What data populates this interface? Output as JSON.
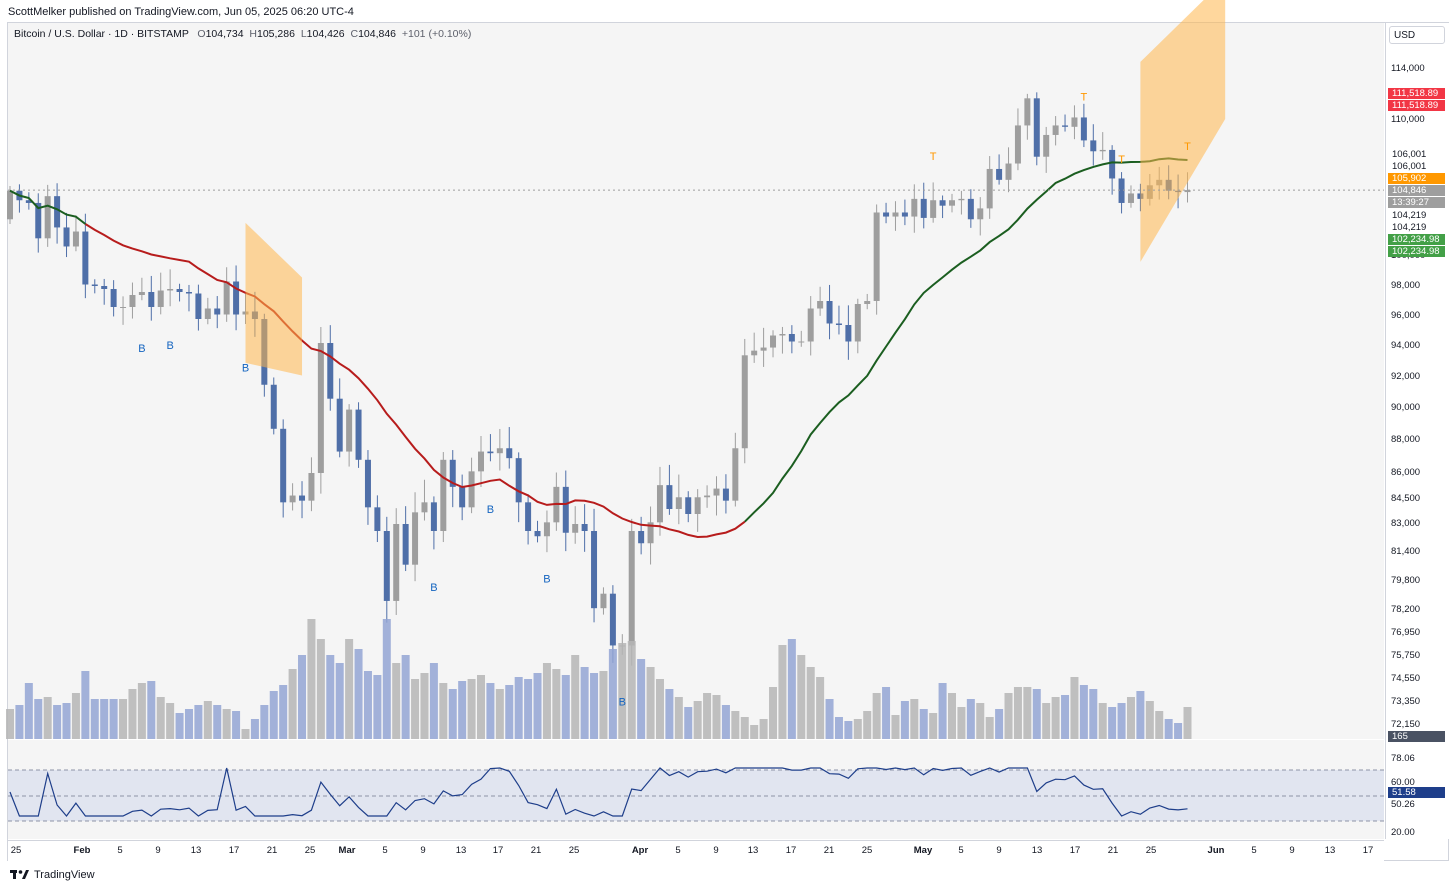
{
  "publisher_line": "ScottMelker published on TradingView.com, Jun 05, 2025 06:20 UTC-4",
  "symbol": {
    "name": "Bitcoin / U.S. Dollar · 1D · BITSTAMP",
    "open_label": "O",
    "open": "104,734",
    "high_label": "H",
    "high": "105,286",
    "low_label": "L",
    "low": "104,426",
    "close_label": "C",
    "close": "104,846",
    "change": "+101 (+0.10%)"
  },
  "currency_button": "USD",
  "price_axis": {
    "ticks": [
      "114,000",
      "110,000",
      "100,000",
      "98,000",
      "96,000",
      "94,000",
      "92,000",
      "90,000",
      "88,000",
      "86,000",
      "84,500",
      "83,000",
      "81,400",
      "79,800",
      "78,200",
      "76,950",
      "75,750",
      "74,550",
      "73,350",
      "72,150"
    ],
    "tags": [
      {
        "text": "111,518.89",
        "color": "#f23645"
      },
      {
        "text": "111,518.89",
        "color": "#f23645"
      },
      {
        "text": "106,001",
        "color": "#ffffff",
        "fg": "#131722"
      },
      {
        "text": "106,001",
        "color": "#ffffff",
        "fg": "#131722"
      },
      {
        "text": "105,902",
        "color": "#ff9800"
      },
      {
        "text": "104,846",
        "color": "#9e9e9e"
      },
      {
        "text": "13:39:27",
        "color": "#9e9e9e"
      },
      {
        "text": "104,219",
        "color": "#ffffff",
        "fg": "#131722"
      },
      {
        "text": "104,219",
        "color": "#ffffff",
        "fg": "#131722"
      },
      {
        "text": "102,234.98",
        "color": "#43a047"
      },
      {
        "text": "102,234.98",
        "color": "#43a047"
      },
      {
        "text": "165",
        "color": "#4a5263"
      }
    ]
  },
  "osc_axis": {
    "ticks": [
      "78.06",
      "60.00",
      "50.26",
      "20.00"
    ],
    "tag": {
      "text": "51.58",
      "color": "#1e3e8a"
    }
  },
  "time_axis": {
    "labels": [
      {
        "t": "25",
        "major": false
      },
      {
        "t": "Feb",
        "major": true
      },
      {
        "t": "5",
        "major": false
      },
      {
        "t": "9",
        "major": false
      },
      {
        "t": "13",
        "major": false
      },
      {
        "t": "17",
        "major": false
      },
      {
        "t": "21",
        "major": false
      },
      {
        "t": "25",
        "major": false
      },
      {
        "t": "Mar",
        "major": true
      },
      {
        "t": "5",
        "major": false
      },
      {
        "t": "9",
        "major": false
      },
      {
        "t": "13",
        "major": false
      },
      {
        "t": "17",
        "major": false
      },
      {
        "t": "21",
        "major": false
      },
      {
        "t": "25",
        "major": false
      },
      {
        "t": "Apr",
        "major": true
      },
      {
        "t": "5",
        "major": false
      },
      {
        "t": "9",
        "major": false
      },
      {
        "t": "13",
        "major": false
      },
      {
        "t": "17",
        "major": false
      },
      {
        "t": "21",
        "major": false
      },
      {
        "t": "25",
        "major": false
      },
      {
        "t": "May",
        "major": true
      },
      {
        "t": "5",
        "major": false
      },
      {
        "t": "9",
        "major": false
      },
      {
        "t": "13",
        "major": false
      },
      {
        "t": "17",
        "major": false
      },
      {
        "t": "21",
        "major": false
      },
      {
        "t": "25",
        "major": false
      },
      {
        "t": "Jun",
        "major": true
      },
      {
        "t": "5",
        "major": false
      },
      {
        "t": "9",
        "major": false
      },
      {
        "t": "13",
        "major": false
      },
      {
        "t": "17",
        "major": false
      }
    ]
  },
  "signals": {
    "buy_label": "B",
    "top_label": "T"
  },
  "footer": {
    "brand": "TradingView"
  },
  "colors": {
    "up_candle": "#9e9e9e",
    "down_candle": "#4f6fa8",
    "ma_bear": "#b71c1c",
    "ma_bull": "#1b5e20",
    "flat_band": "#ff9800",
    "projection": "#ffb74d",
    "oscillator": "#1e3e8a",
    "signal_blue": "#1565c0",
    "top_orange": "#ff9800"
  },
  "chart_data": {
    "type": "candlestick",
    "title": "",
    "x": [
      "2025-01-25",
      "2025-06-05"
    ],
    "price_ylim": [
      72150,
      114000
    ],
    "closes": [
      104800,
      104100,
      103900,
      101300,
      104400,
      102100,
      100700,
      101800,
      98100,
      98000,
      97800,
      96600,
      96600,
      97400,
      97600,
      96600,
      97700,
      97800,
      97600,
      97500,
      95800,
      96500,
      96100,
      98300,
      96100,
      96300,
      95800,
      91500,
      88700,
      84300,
      84700,
      84400,
      86000,
      94200,
      90600,
      87300,
      89900,
      86800,
      84000,
      82600,
      78700,
      83000,
      80700,
      83700,
      84300,
      82600,
      86800,
      85200,
      84000,
      86100,
      87300,
      87200,
      87500,
      86900,
      84300,
      82600,
      82300,
      83100,
      85200,
      82500,
      83000,
      82600,
      78300,
      79100,
      76300,
      76300,
      82600,
      81900,
      83100,
      85300,
      83900,
      84600,
      83600,
      84600,
      84700,
      85100,
      84400,
      87500,
      93400,
      93700,
      93900,
      94700,
      94800,
      94300,
      94300,
      96500,
      97000,
      95500,
      95400,
      94300,
      96800,
      97000,
      103200,
      102900,
      103200,
      102900,
      104200,
      102800,
      104100,
      103700,
      104100,
      104200,
      102700,
      103500,
      106400,
      105600,
      106800,
      109600,
      111700,
      107300,
      108900,
      109600,
      109500,
      110200,
      108500,
      107700,
      107800,
      105700,
      103900,
      104600,
      104200,
      105200,
      105600,
      104800,
      104700,
      104846
    ],
    "last_close": 104846,
    "rsi": {
      "levels": [
        78.06,
        60.0,
        50.26,
        20.0
      ],
      "last": 51.58
    },
    "volume_last": 165,
    "signals": {
      "buy": [
        "2025-02-08",
        "2025-02-12",
        "2025-02-17",
        "2025-03-10",
        "2025-03-17",
        "2025-03-21",
        "2025-04-01"
      ],
      "top": [
        "2025-05-06",
        "2025-05-22",
        "2025-05-26",
        "2025-06-02"
      ]
    }
  }
}
